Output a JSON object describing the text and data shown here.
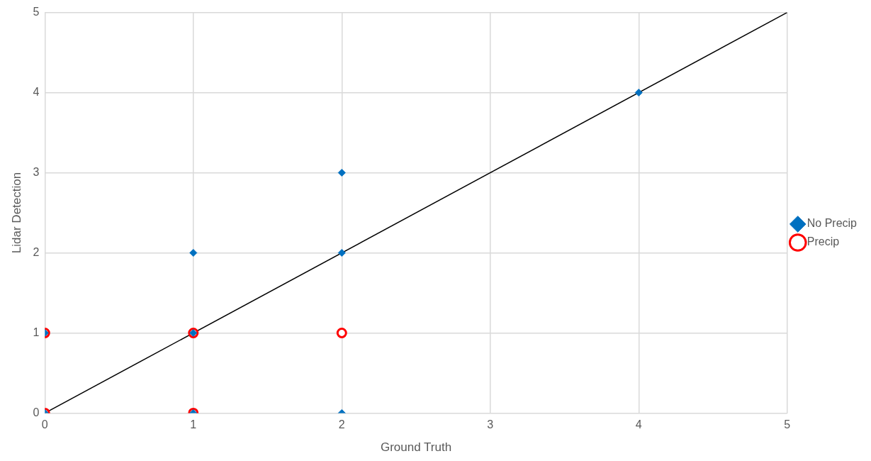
{
  "chart_data": {
    "type": "scatter",
    "xlabel": "Ground Truth",
    "ylabel": "Lidar Detection",
    "xlim": [
      0,
      5
    ],
    "xticks": [
      0,
      1,
      2,
      3,
      4,
      5
    ],
    "ylim": [
      0,
      5
    ],
    "yticks": [
      0,
      1,
      2,
      3,
      4,
      5
    ],
    "grid": true,
    "legend": "right",
    "series": [
      {
        "name": "No Precip",
        "color": "#0070c0",
        "marker": "diamond",
        "x": [
          0,
          0,
          1,
          1,
          1,
          2,
          2,
          2,
          4
        ],
        "values": [
          0,
          1,
          0,
          1,
          2,
          0,
          2,
          3,
          4
        ]
      },
      {
        "name": "Precip",
        "color": "#ff0000",
        "marker": "circle",
        "x": [
          0,
          0,
          1,
          1,
          2
        ],
        "values": [
          0,
          1,
          0,
          1,
          1
        ]
      },
      {
        "type": "line",
        "color": "#000000",
        "marker": "none",
        "x": [
          0,
          5
        ],
        "values": [
          0,
          5
        ]
      }
    ]
  }
}
